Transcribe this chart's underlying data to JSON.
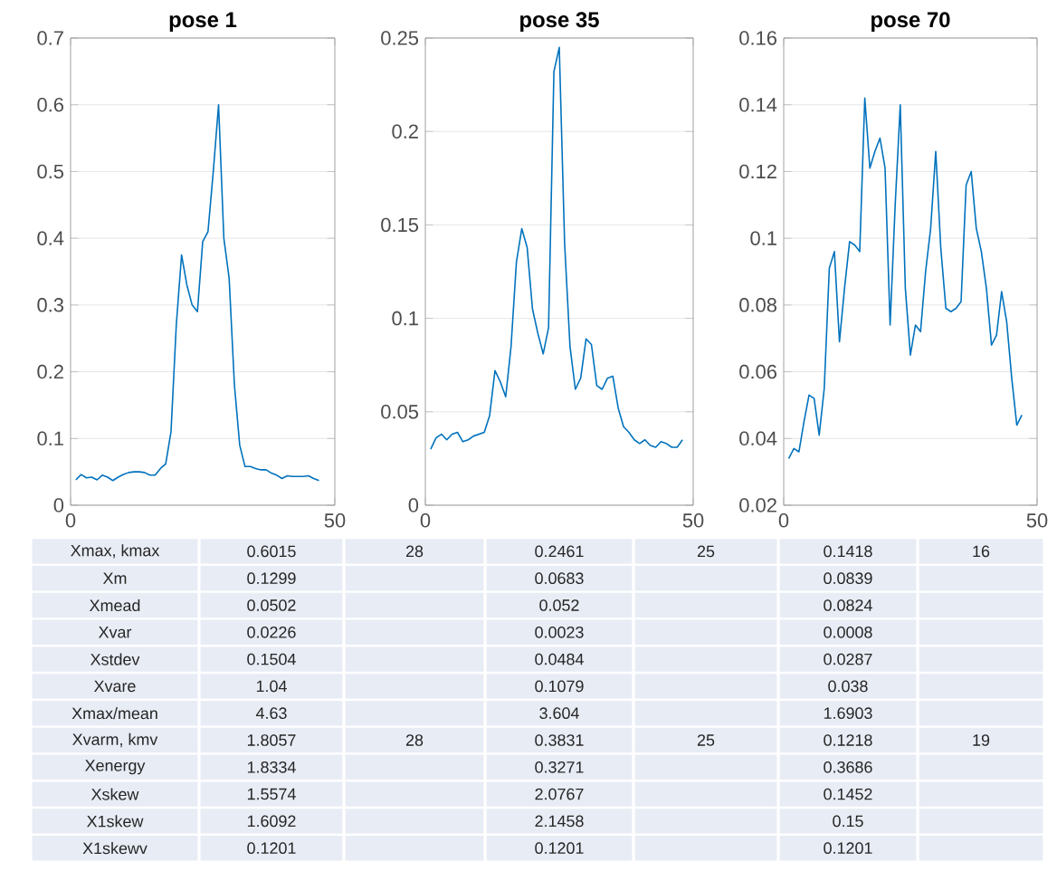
{
  "chart_data": [
    {
      "type": "line",
      "title": "pose 1",
      "color": "#0072bd",
      "grid": "y",
      "xlim": [
        0,
        50
      ],
      "ylim": [
        0,
        0.7
      ],
      "xticks": [
        0,
        50
      ],
      "yticks": [
        0,
        0.1,
        0.2,
        0.3,
        0.4,
        0.5,
        0.6,
        0.7
      ],
      "x": [
        1,
        2,
        3,
        4,
        5,
        6,
        7,
        8,
        9,
        10,
        11,
        12,
        13,
        14,
        15,
        16,
        17,
        18,
        19,
        20,
        21,
        22,
        23,
        24,
        25,
        26,
        27,
        28,
        29,
        30,
        31,
        32,
        33,
        34,
        35,
        36,
        37,
        38,
        39,
        40,
        41,
        42,
        43,
        44,
        45,
        46,
        47
      ],
      "values": [
        0.038,
        0.046,
        0.041,
        0.042,
        0.038,
        0.045,
        0.042,
        0.037,
        0.042,
        0.046,
        0.049,
        0.05,
        0.05,
        0.049,
        0.045,
        0.045,
        0.055,
        0.062,
        0.11,
        0.27,
        0.375,
        0.33,
        0.3,
        0.29,
        0.395,
        0.41,
        0.5,
        0.6,
        0.4,
        0.34,
        0.18,
        0.09,
        0.058,
        0.058,
        0.055,
        0.053,
        0.053,
        0.048,
        0.045,
        0.04,
        0.044,
        0.043,
        0.043,
        0.043,
        0.044,
        0.04,
        0.037
      ]
    },
    {
      "type": "line",
      "title": "pose 35",
      "color": "#0072bd",
      "grid": "y",
      "xlim": [
        0,
        50
      ],
      "ylim": [
        0,
        0.25
      ],
      "xticks": [
        0,
        50
      ],
      "yticks": [
        0,
        0.05,
        0.1,
        0.15,
        0.2,
        0.25
      ],
      "x": [
        1,
        2,
        3,
        4,
        5,
        6,
        7,
        8,
        9,
        10,
        11,
        12,
        13,
        14,
        15,
        16,
        17,
        18,
        19,
        20,
        21,
        22,
        23,
        24,
        25,
        26,
        27,
        28,
        29,
        30,
        31,
        32,
        33,
        34,
        35,
        36,
        37,
        38,
        39,
        40,
        41,
        42,
        43,
        44,
        45,
        46,
        47,
        48
      ],
      "values": [
        0.03,
        0.036,
        0.038,
        0.035,
        0.038,
        0.039,
        0.034,
        0.035,
        0.037,
        0.038,
        0.039,
        0.048,
        0.072,
        0.066,
        0.058,
        0.085,
        0.13,
        0.148,
        0.138,
        0.105,
        0.092,
        0.081,
        0.095,
        0.232,
        0.245,
        0.14,
        0.085,
        0.062,
        0.068,
        0.089,
        0.086,
        0.064,
        0.062,
        0.068,
        0.069,
        0.052,
        0.042,
        0.039,
        0.035,
        0.033,
        0.035,
        0.032,
        0.031,
        0.034,
        0.033,
        0.031,
        0.031,
        0.035
      ]
    },
    {
      "type": "line",
      "title": "pose 70",
      "color": "#0072bd",
      "grid": "y",
      "xlim": [
        0,
        50
      ],
      "ylim": [
        0.02,
        0.16
      ],
      "xticks": [
        0,
        50
      ],
      "yticks": [
        0.02,
        0.04,
        0.06,
        0.08,
        0.1,
        0.12,
        0.14,
        0.16
      ],
      "x": [
        1,
        2,
        3,
        4,
        5,
        6,
        7,
        8,
        9,
        10,
        11,
        12,
        13,
        14,
        15,
        16,
        17,
        18,
        19,
        20,
        21,
        22,
        23,
        24,
        25,
        26,
        27,
        28,
        29,
        30,
        31,
        32,
        33,
        34,
        35,
        36,
        37,
        38,
        39,
        40,
        41,
        42,
        43,
        44,
        45,
        46,
        47
      ],
      "values": [
        0.034,
        0.037,
        0.036,
        0.045,
        0.053,
        0.052,
        0.041,
        0.055,
        0.091,
        0.096,
        0.069,
        0.085,
        0.099,
        0.098,
        0.096,
        0.142,
        0.121,
        0.126,
        0.13,
        0.121,
        0.074,
        0.11,
        0.14,
        0.085,
        0.065,
        0.074,
        0.072,
        0.09,
        0.103,
        0.126,
        0.097,
        0.079,
        0.078,
        0.079,
        0.081,
        0.116,
        0.12,
        0.103,
        0.096,
        0.085,
        0.068,
        0.071,
        0.084,
        0.075,
        0.058,
        0.044,
        0.047
      ]
    },
    {
      "type": "other",
      "y_categories": [
        "Xmax, kmax",
        "Xm",
        "Xmead",
        "Xvar",
        "Xstdev",
        "Xvare",
        "Xmax/mean",
        "Xvarm, kmv",
        "Xenergy",
        "Xskew",
        "X1skew",
        "X1skewv"
      ],
      "cell_labels": [
        [
          "0.6015",
          "28",
          "0.2461",
          "25",
          "0.1418",
          "16"
        ],
        [
          "0.1299",
          null,
          "0.0683",
          null,
          "0.0839",
          null
        ],
        [
          "0.0502",
          null,
          "0.052",
          null,
          "0.0824",
          null
        ],
        [
          "0.0226",
          null,
          "0.0023",
          null,
          "0.0008",
          null
        ],
        [
          "0.1504",
          null,
          "0.0484",
          null,
          "0.0287",
          null
        ],
        [
          "1.04",
          null,
          "0.1079",
          null,
          "0.038",
          null
        ],
        [
          "4.63",
          null,
          "3.604",
          null,
          "1.6903",
          null
        ],
        [
          "1.8057",
          "28",
          "0.3831",
          "25",
          "0.1218",
          "19"
        ],
        [
          "1.8334",
          null,
          "0.3271",
          null,
          "0.3686",
          null
        ],
        [
          "1.5574",
          null,
          "2.0767",
          null,
          "0.1452",
          null
        ],
        [
          "1.6092",
          null,
          "2.1458",
          null,
          "0.15",
          null
        ],
        [
          "0.1201",
          null,
          "0.1201",
          null,
          "0.1201",
          null
        ]
      ]
    }
  ]
}
